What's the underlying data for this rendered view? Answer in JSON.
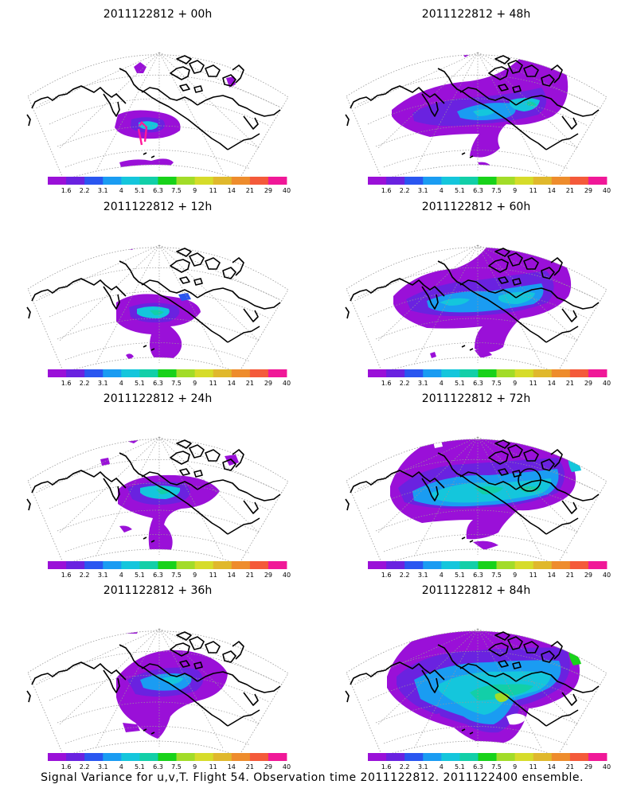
{
  "figure": {
    "caption": "Signal Variance for u,v,T. Flight 54. Observation time 2011122812. 2011122400 ensemble."
  },
  "colorbar": {
    "labels": [
      "1.6",
      "2.2",
      "3.1",
      "4",
      "5.1",
      "6.3",
      "7.5",
      "9",
      "11",
      "14",
      "21",
      "29",
      "40"
    ],
    "colors": [
      "#9a10d8",
      "#6a22e0",
      "#2a56f0",
      "#1a9cf2",
      "#14c6dc",
      "#12cfa8",
      "#18d21a",
      "#a2dc28",
      "#d6dc2a",
      "#e0b82c",
      "#ee8c2c",
      "#f45a3a",
      "#f01898"
    ]
  },
  "panels": [
    {
      "title": "2011122812 + 00h"
    },
    {
      "title": "2011122812 + 48h"
    },
    {
      "title": "2011122812 + 12h"
    },
    {
      "title": "2011122812 + 60h"
    },
    {
      "title": "2011122812 + 24h"
    },
    {
      "title": "2011122812 + 72h"
    },
    {
      "title": "2011122812 + 36h"
    },
    {
      "title": "2011122812 + 84h"
    }
  ]
}
